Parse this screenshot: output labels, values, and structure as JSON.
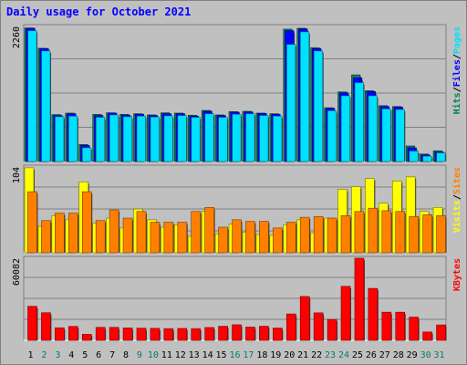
{
  "title": "Daily usage for October 2021",
  "colors": {
    "hits": "#00805c",
    "files": "#0000ff",
    "pages": "#00e0ff",
    "visits": "#ffff00",
    "sites": "#ff8000",
    "kbytes": "#ff0000",
    "weekend_label": "#00805c",
    "weekday_label": "#000000"
  },
  "chart_data": [
    {
      "type": "bar",
      "panel": "hits-files-pages",
      "categories": [
        "1",
        "2",
        "3",
        "4",
        "5",
        "6",
        "7",
        "8",
        "9",
        "10",
        "11",
        "12",
        "13",
        "14",
        "15",
        "16",
        "17",
        "18",
        "19",
        "20",
        "21",
        "22",
        "23",
        "24",
        "25",
        "26",
        "27",
        "28",
        "29",
        "30",
        "31"
      ],
      "weekend_days": [
        "2",
        "3",
        "9",
        "10",
        "16",
        "17",
        "23",
        "24",
        "30",
        "31"
      ],
      "ymax_label": "2260",
      "ylim": [
        0,
        2260
      ],
      "legend": [
        {
          "key": "pages",
          "label": "Pages"
        },
        {
          "key": "files",
          "label": "Files"
        },
        {
          "key": "hits",
          "label": "Hits"
        }
      ],
      "separator": "/",
      "series": [
        {
          "name": "Hits",
          "key": "hits",
          "values": [
            2235,
            1895,
            785,
            810,
            285,
            790,
            815,
            790,
            800,
            780,
            815,
            810,
            775,
            855,
            780,
            835,
            840,
            810,
            800,
            2215,
            2230,
            1905,
            900,
            1165,
            1450,
            1185,
            935,
            920,
            260,
            125,
            180
          ]
        },
        {
          "name": "Files",
          "key": "files",
          "values": [
            2230,
            1890,
            770,
            800,
            270,
            770,
            810,
            775,
            790,
            770,
            800,
            800,
            760,
            840,
            770,
            825,
            830,
            805,
            790,
            2190,
            2220,
            1890,
            890,
            1150,
            1400,
            1170,
            920,
            910,
            230,
            110,
            160
          ]
        },
        {
          "name": "Pages",
          "key": "pages",
          "values": [
            2190,
            1850,
            750,
            760,
            230,
            740,
            780,
            750,
            760,
            745,
            765,
            770,
            740,
            800,
            740,
            790,
            800,
            770,
            760,
            1960,
            2170,
            1850,
            850,
            1100,
            1320,
            1100,
            880,
            870,
            175,
            90,
            145
          ]
        }
      ]
    },
    {
      "type": "bar",
      "panel": "visits-sites",
      "categories": [
        "1",
        "2",
        "3",
        "4",
        "5",
        "6",
        "7",
        "8",
        "9",
        "10",
        "11",
        "12",
        "13",
        "14",
        "15",
        "16",
        "17",
        "18",
        "19",
        "20",
        "21",
        "22",
        "23",
        "24",
        "25",
        "26",
        "27",
        "28",
        "29",
        "30",
        "31"
      ],
      "ymax_label": "104",
      "ylim": [
        0,
        104
      ],
      "legend": [
        {
          "key": "sites",
          "label": "Sites"
        },
        {
          "key": "visits",
          "label": "Visits"
        }
      ],
      "separator": "/",
      "series": [
        {
          "name": "Visits",
          "key": "visits",
          "values": [
            103,
            32,
            45,
            40,
            86,
            36,
            42,
            30,
            53,
            40,
            31,
            34,
            20,
            50,
            23,
            35,
            25,
            22,
            21,
            34,
            40,
            24,
            42,
            77,
            80,
            90,
            60,
            87,
            92,
            50,
            55
          ]
        },
        {
          "name": "Sites",
          "key": "sites",
          "values": [
            74,
            39,
            48,
            48,
            74,
            39,
            52,
            42,
            50,
            37,
            37,
            37,
            50,
            55,
            31,
            40,
            38,
            38,
            30,
            37,
            43,
            44,
            42,
            45,
            50,
            54,
            51,
            50,
            44,
            46,
            45
          ]
        }
      ]
    },
    {
      "type": "bar",
      "panel": "kbytes",
      "categories": [
        "1",
        "2",
        "3",
        "4",
        "5",
        "6",
        "7",
        "8",
        "9",
        "10",
        "11",
        "12",
        "13",
        "14",
        "15",
        "16",
        "17",
        "18",
        "19",
        "20",
        "21",
        "22",
        "23",
        "24",
        "25",
        "26",
        "27",
        "28",
        "29",
        "30",
        "31"
      ],
      "ymax_label": "60082",
      "ylim": [
        0,
        60082
      ],
      "legend": [
        {
          "key": "kbytes",
          "label": "KBytes"
        }
      ],
      "series": [
        {
          "name": "KBytes",
          "key": "kbytes",
          "values": [
            24900,
            20200,
            9200,
            10200,
            4400,
            9500,
            9500,
            9100,
            8900,
            8800,
            8600,
            8700,
            8600,
            9400,
            10300,
            11400,
            9700,
            10300,
            9000,
            19300,
            32100,
            20100,
            15300,
            39500,
            60082,
            38000,
            20600,
            20600,
            17000,
            6100,
            11300
          ]
        }
      ]
    }
  ]
}
